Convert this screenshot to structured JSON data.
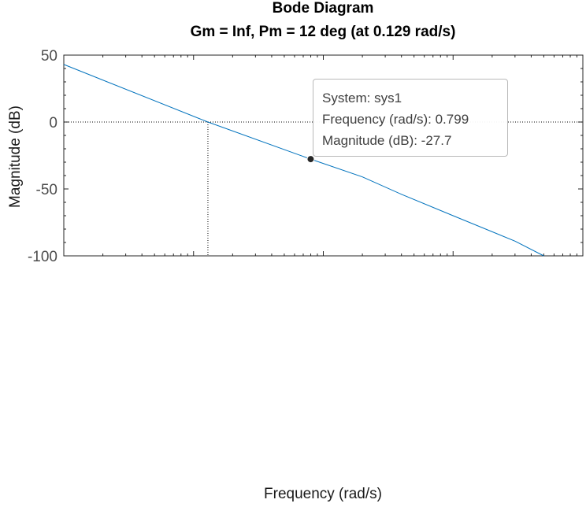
{
  "chart_data": {
    "type": "line",
    "title": "Bode Diagram",
    "subtitle": "Gm = Inf,  Pm = 12 deg (at 0.129 rad/s)",
    "xlabel": "Frequency  (rad/s)",
    "ylabel": "Magnitude (dB)",
    "xscale": "log",
    "xlim": [
      0.01,
      100
    ],
    "ylim": [
      -100,
      50
    ],
    "yticks": [
      50,
      0,
      -50,
      -100
    ],
    "grid": false,
    "reference_lines": {
      "zero_db_line": 0,
      "crossover_frequency": 0.129
    },
    "series": [
      {
        "color": "#0072BD",
        "x": [
          0.01,
          0.129,
          0.799,
          2,
          4,
          10,
          30,
          50
        ],
        "y": [
          43,
          0,
          -27.7,
          -41,
          -54,
          -70,
          -89,
          -100
        ]
      }
    ],
    "datatip": {
      "marker": {
        "x": 0.799,
        "y": -27.7
      },
      "system_line": "System: sys1",
      "frequency_line": "Frequency (rad/s): 0.799",
      "magnitude_line": "Magnitude (dB): -27.7"
    }
  }
}
